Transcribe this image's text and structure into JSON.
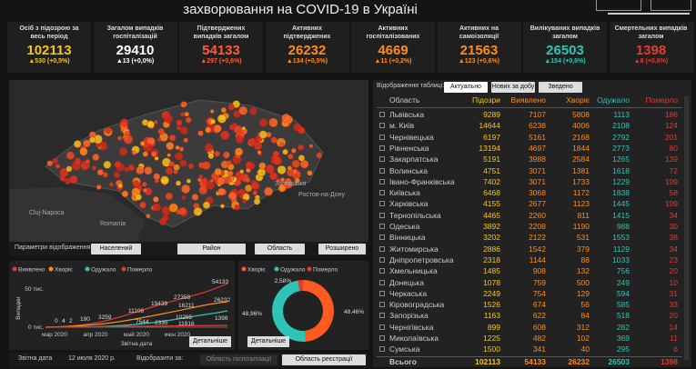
{
  "header": {
    "title": "захворювання на COVID-19 в Україні"
  },
  "cards": [
    {
      "label": "Осіб з підозрою за весь період",
      "value": 102113,
      "delta": "▲530 (+0,5%)",
      "color": "#f5c518"
    },
    {
      "label": "Загалом випадків госпіталізацій",
      "value": 29410,
      "delta": "▲13 (+0,0%)",
      "color": "#ffffff"
    },
    {
      "label": "Підтверджених випадків загалом",
      "value": 54133,
      "delta": "▲297 (+0,6%)",
      "color": "#ff5a36"
    },
    {
      "label": "Активних підтверджених",
      "value": 26232,
      "delta": "▲134 (+0,5%)",
      "color": "#ff8c1a"
    },
    {
      "label": "Активних госпіталізованих",
      "value": 4669,
      "delta": "▲11 (+0,2%)",
      "color": "#ff8c1a"
    },
    {
      "label": "Активних на самоізоляції",
      "value": 21563,
      "delta": "▲123 (+0,6%)",
      "color": "#ff8c1a"
    },
    {
      "label": "Вилікуваних випадків загалом",
      "value": 26503,
      "delta": "▲154 (+0,6%)",
      "color": "#2ec4b6"
    },
    {
      "label": "Смертельних випадків загалом",
      "value": 1398,
      "delta": "▲8 (+0,6%)",
      "color": "#e03c31"
    }
  ],
  "map": {
    "places": [
      "Romania",
      "Cluj-Napoca",
      "Ростов-на-Дону",
      "Запоріжжя"
    ],
    "controls": {
      "label": "Параметри відображення:",
      "options": [
        "Населений пункт",
        "Район",
        "Область"
      ],
      "extended": "Розширено"
    }
  },
  "trend": {
    "legend": [
      "Виявлено",
      "Хворіє",
      "Одужало",
      "Померло"
    ],
    "yticks": [
      "50 тис.",
      "0 тис."
    ],
    "y_title": "Випадки",
    "xticks": [
      "мар 2020",
      "апр 2020",
      "май 2020",
      "июн 2020"
    ],
    "x_title": "Звітна дата",
    "labels": [
      0,
      4,
      2,
      190,
      3259,
      11106,
      19439,
      27358,
      54133,
      26232,
      16211,
      10295,
      1398,
      7544,
      2335,
      11916
    ],
    "button": "Детальніше"
  },
  "donut": {
    "segments": [
      {
        "name": "Хворіє",
        "value": 48.46,
        "label": "48,46%",
        "color": "#ff5a1f"
      },
      {
        "name": "Одужало",
        "value": 48.96,
        "label": "48,96%",
        "color": "#2ec4b6"
      },
      {
        "name": "Померло",
        "value": 2.58,
        "label": "2,58%",
        "color": "#e03c31"
      }
    ],
    "button": "Детальніше"
  },
  "footer": {
    "date_label": "Звітна дата",
    "date": "12 июля 2020 р.",
    "show_by": "Відобразити за:",
    "options": [
      "Область госпіталізації",
      "Область реєстрації"
    ]
  },
  "table": {
    "controls": {
      "label": "Відображення таблиці:",
      "options": [
        "Актуально",
        "Нових за добу",
        "Зведено"
      ]
    },
    "columns": [
      "Область",
      "Підозри",
      "Виявлено",
      "Хворіє",
      "Одужало",
      "Померло"
    ],
    "rows": [
      [
        "Львівська",
        9289,
        7107,
        5808,
        1113,
        186
      ],
      [
        "м. Київ",
        14644,
        6238,
        4006,
        2108,
        124
      ],
      [
        "Чернівецька",
        6197,
        5161,
        2168,
        2792,
        201
      ],
      [
        "Рівненська",
        13194,
        4697,
        1844,
        2773,
        80
      ],
      [
        "Закарпатська",
        5191,
        3988,
        2584,
        1265,
        139
      ],
      [
        "Волинська",
        4751,
        3071,
        1381,
        1618,
        72
      ],
      [
        "Івано-Франківська",
        7402,
        3071,
        1733,
        1229,
        109
      ],
      [
        "Київська",
        6468,
        3068,
        1172,
        1838,
        58
      ],
      [
        "Харківська",
        4155,
        2677,
        1123,
        1445,
        109
      ],
      [
        "Тернопільська",
        4465,
        2260,
        811,
        1415,
        34
      ],
      [
        "Одеська",
        3892,
        2208,
        1190,
        988,
        30
      ],
      [
        "Вінницька",
        3202,
        2122,
        531,
        1553,
        38
      ],
      [
        "Житомирська",
        2886,
        1542,
        379,
        1129,
        34
      ],
      [
        "Дніпропетровська",
        2318,
        1144,
        88,
        1033,
        23
      ],
      [
        "Хмельницька",
        1485,
        908,
        132,
        756,
        20
      ],
      [
        "Донецька",
        1078,
        759,
        500,
        249,
        10
      ],
      [
        "Черкаська",
        2249,
        754,
        129,
        594,
        31
      ],
      [
        "Кіровоградська",
        1526,
        674,
        56,
        585,
        33
      ],
      [
        "Запорізька",
        1163,
        622,
        84,
        518,
        20
      ],
      [
        "Чернігівська",
        899,
        608,
        312,
        282,
        14
      ],
      [
        "Миколаївська",
        1225,
        482,
        102,
        369,
        11
      ],
      [
        "Сумська",
        1500,
        341,
        40,
        295,
        6
      ]
    ],
    "total": [
      "Всього",
      102113,
      54133,
      26232,
      26503,
      1398
    ]
  }
}
